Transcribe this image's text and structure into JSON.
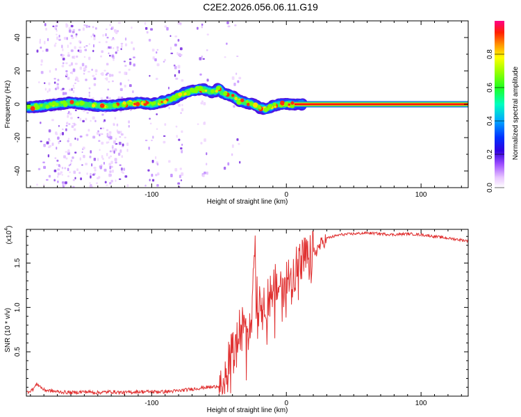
{
  "title": "C2E2.2026.056.06.11.G19",
  "colors": {
    "axis": "#000000",
    "snr_line": "#e03030",
    "colormap": [
      "#ffffff",
      "#ffccff",
      "#b070ff",
      "#5000e0",
      "#0020ff",
      "#00b0ff",
      "#00ffa0",
      "#40ff00",
      "#ffff00",
      "#ff8000",
      "#ff2000",
      "#ff0080"
    ]
  },
  "chart_data": [
    {
      "type": "heatmap",
      "name": "spectrogram",
      "xlabel": "Height of straight line (km)",
      "ylabel": "Frequency (Hz)",
      "xlim": [
        -193,
        135
      ],
      "ylim": [
        -50,
        50
      ],
      "xticks": [
        -100,
        0,
        100
      ],
      "xtick_labels": [
        "-100",
        "0",
        "100"
      ],
      "yticks": [
        -40,
        -20,
        0,
        20,
        40
      ],
      "ytick_labels": [
        "-40",
        "-20",
        "0",
        "20",
        "40"
      ],
      "colorbar": {
        "label": "Normalized spectral amplitude",
        "range": [
          0,
          1
        ],
        "ticks": [
          0.0,
          0.2,
          0.4,
          0.6,
          0.8
        ],
        "tick_labels": [
          "0.0",
          "0.2",
          "0.4",
          "0.6",
          "0.8"
        ]
      },
      "ridge": {
        "description": "frequency of peak amplitude vs height",
        "x": [
          -193,
          -180,
          -170,
          -160,
          -150,
          -140,
          -130,
          -120,
          -110,
          -100,
          -95,
          -90,
          -85,
          -80,
          -75,
          -70,
          -65,
          -62,
          -58,
          -55,
          -52,
          -50,
          -48,
          -45,
          -40,
          -35,
          -30,
          -25,
          -20,
          -15,
          -10,
          -5,
          0,
          5,
          10,
          135
        ],
        "y": [
          -2,
          -1,
          0,
          1,
          0,
          -1,
          -1,
          0,
          1,
          0,
          1,
          2,
          3,
          5,
          7,
          8,
          9,
          9,
          8,
          7,
          8,
          10,
          7,
          6,
          5,
          2,
          1,
          0,
          -2,
          -3,
          -1,
          0,
          0,
          0,
          0,
          0
        ]
      }
    },
    {
      "type": "line",
      "name": "snr",
      "xlabel": "Height of straight line (km)",
      "ylabel": "SNR (10 * v/v)",
      "multiplier_label": "(x10",
      "multiplier_exponent": "4",
      "xlim": [
        -193,
        135
      ],
      "ylim": [
        0,
        1.88
      ],
      "xticks": [
        -100,
        0,
        100
      ],
      "xtick_labels": [
        "-100",
        "0",
        "100"
      ],
      "yticks": [
        0.5,
        1.0,
        1.5
      ],
      "ytick_labels": [
        "0.5",
        "1.0",
        "1.5"
      ],
      "series": [
        {
          "name": "SNR",
          "color": "#e03030",
          "x": [
            -193,
            -188,
            -185,
            -180,
            -170,
            -160,
            -150,
            -140,
            -130,
            -120,
            -110,
            -100,
            -90,
            -80,
            -70,
            -60,
            -55,
            -50,
            -45,
            -42,
            -40,
            -38,
            -35,
            -30,
            -25,
            -24,
            -22,
            -20,
            -15,
            -10,
            -5,
            0,
            5,
            10,
            15,
            20,
            25,
            30,
            40,
            50,
            60,
            70,
            80,
            90,
            100,
            110,
            120,
            130,
            135
          ],
          "y": [
            0.04,
            0.08,
            0.14,
            0.07,
            0.05,
            0.04,
            0.05,
            0.04,
            0.05,
            0.04,
            0.05,
            0.05,
            0.05,
            0.06,
            0.08,
            0.1,
            0.1,
            0.12,
            0.2,
            0.4,
            0.6,
            0.5,
            0.7,
            0.8,
            1.0,
            1.8,
            1.2,
            1.1,
            1.1,
            1.2,
            1.25,
            1.3,
            1.4,
            1.5,
            1.55,
            1.6,
            1.7,
            1.78,
            1.82,
            1.83,
            1.84,
            1.83,
            1.82,
            1.83,
            1.82,
            1.8,
            1.78,
            1.76,
            1.75
          ]
        }
      ]
    }
  ]
}
